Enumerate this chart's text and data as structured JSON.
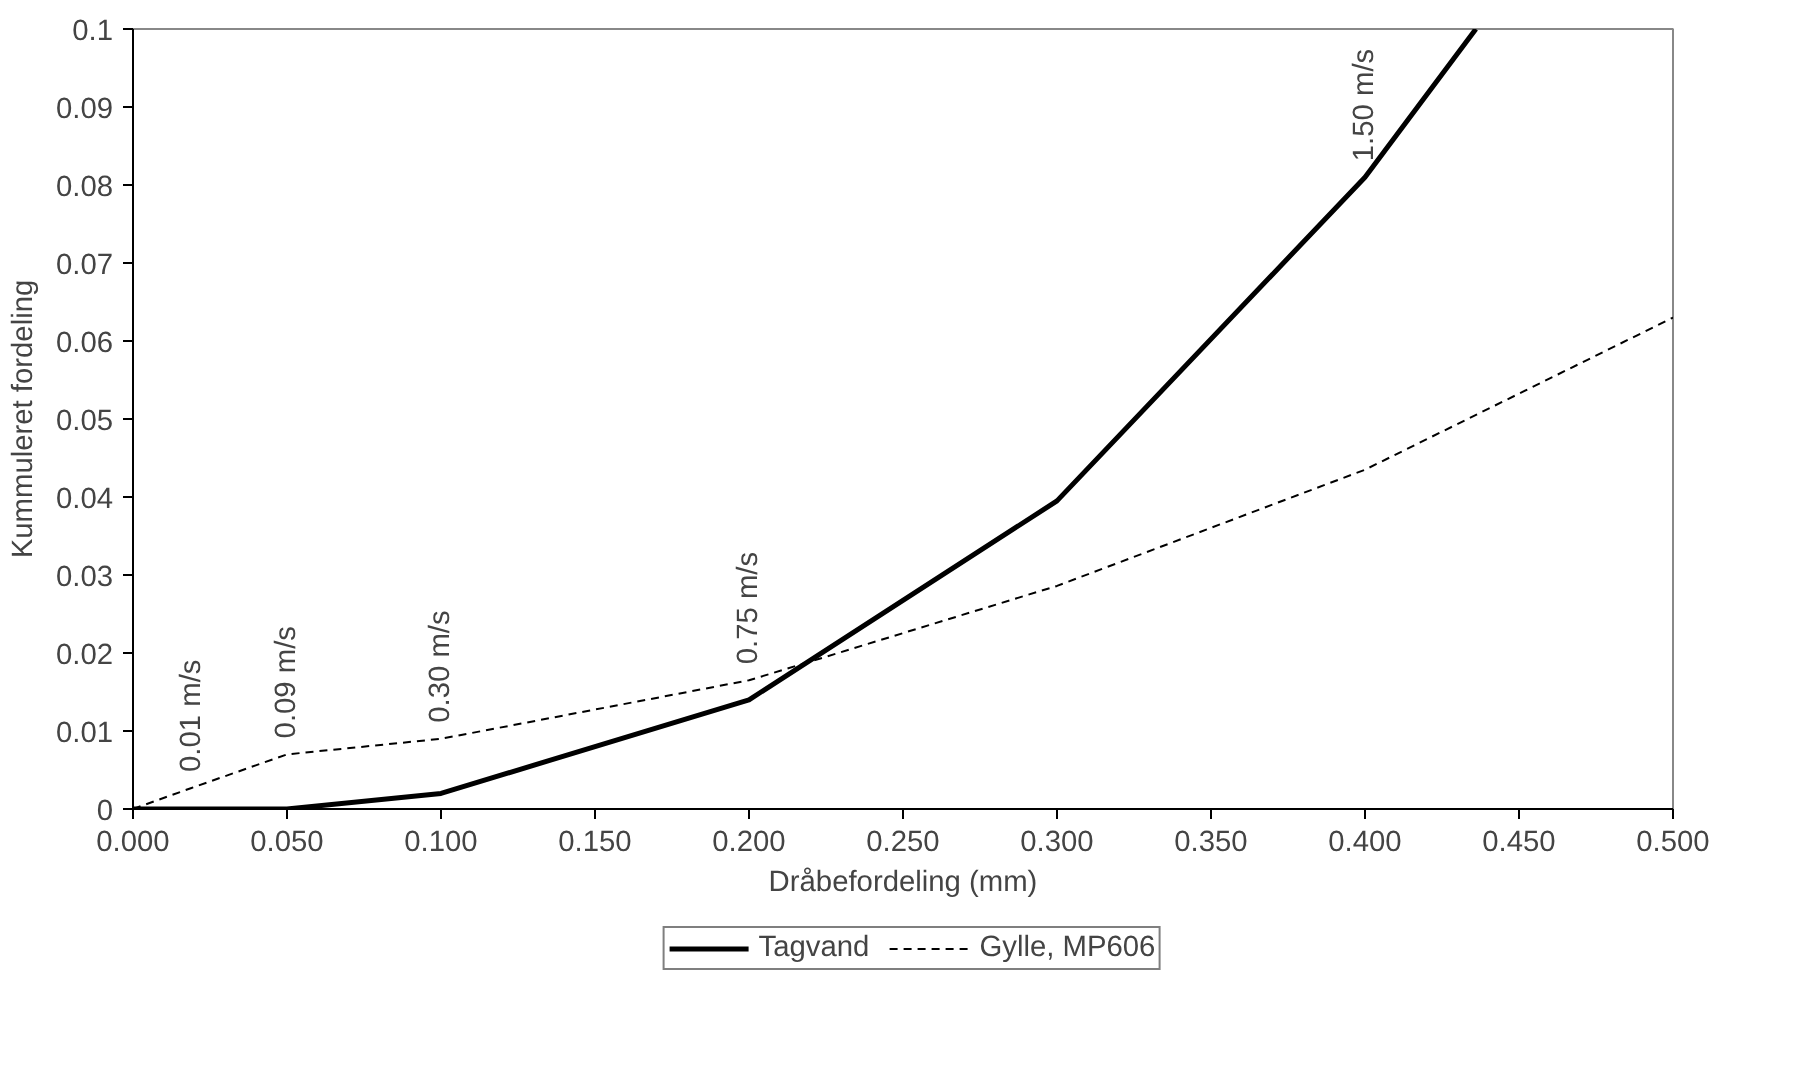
{
  "chart_data": {
    "type": "line",
    "xlabel": "Dråbefordeling (mm)",
    "ylabel": "Kummuleret fordeling",
    "xlim": [
      0,
      0.5
    ],
    "ylim": [
      0,
      0.1
    ],
    "xticks": [
      {
        "value": 0,
        "label": "0.000"
      },
      {
        "value": 0.05,
        "label": "0.050"
      },
      {
        "value": 0.1,
        "label": "0.100"
      },
      {
        "value": 0.15,
        "label": "0.150"
      },
      {
        "value": 0.2,
        "label": "0.200"
      },
      {
        "value": 0.25,
        "label": "0.250"
      },
      {
        "value": 0.3,
        "label": "0.300"
      },
      {
        "value": 0.35,
        "label": "0.350"
      },
      {
        "value": 0.4,
        "label": "0.400"
      },
      {
        "value": 0.45,
        "label": "0.450"
      },
      {
        "value": 0.5,
        "label": "0.500"
      }
    ],
    "yticks": [
      0,
      0.01,
      0.02,
      0.03,
      0.04,
      0.05,
      0.06,
      0.07,
      0.08,
      0.09,
      0.1
    ],
    "series": [
      {
        "name": "Tagvand",
        "color": "#000000",
        "line_style": "solid",
        "x": [
          0,
          0.05,
          0.1,
          0.2,
          0.3,
          0.4,
          0.436
        ],
        "values": [
          0,
          0,
          0.002,
          0.014,
          0.0395,
          0.081,
          0.1
        ]
      },
      {
        "name": "Gylle, MP606",
        "color": "#000000",
        "line_style": "dashed",
        "x": [
          0,
          0.019,
          0.05,
          0.1,
          0.2,
          0.3,
          0.4,
          0.5
        ],
        "values": [
          0,
          0.0027,
          0.007,
          0.009,
          0.0165,
          0.0286,
          0.0435,
          0.063
        ]
      }
    ],
    "annotations": [
      {
        "text": "0.01 m/s",
        "x": 0.019,
        "y": 0.0027
      },
      {
        "text": "0.09 m/s",
        "x": 0.05,
        "y": 0.007
      },
      {
        "text": "0.30 m/s",
        "x": 0.1,
        "y": 0.009
      },
      {
        "text": "0.75 m/s",
        "x": 0.2,
        "y": 0.0165
      },
      {
        "text": "1.50 m/s",
        "x": 0.4,
        "y": 0.081
      }
    ],
    "grid": false,
    "legend": "bottom",
    "marker": "none"
  }
}
